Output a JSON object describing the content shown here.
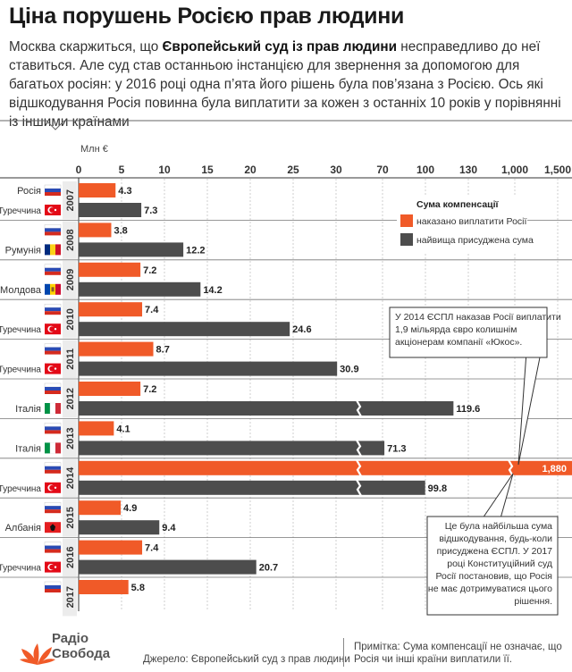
{
  "header": {
    "title": "Ціна порушень Росією прав людини",
    "intro_before": "Москва скаржиться, що ",
    "intro_bold": "Європейський суд із прав людини",
    "intro_after": " несправедливо до неї ставиться. Але суд став останньою інстанцією для звернення за допомогою для багатьох росіян: у 2016 році одна п’ята його рішень була пов’язана з Росією. Ось які відшкодування Росія повинна була виплатити за кожен з останніх 10 років у порівнянні із іншими країнами"
  },
  "chart_data": {
    "type": "bar",
    "orientation": "horizontal",
    "unit_label": "Млн €",
    "axis_ticks": [
      "0",
      "5",
      "10",
      "15",
      "20",
      "25",
      "30",
      "70",
      "100",
      "130",
      "1,000",
      "1,500"
    ],
    "axis_note": "нелінійна вісь з розривами",
    "legend": {
      "title": "Сума компенсації",
      "items": [
        {
          "name": "наказано виплатити Росії",
          "color": "#f05a28"
        },
        {
          "name": "найвища присуджена сума",
          "color": "#4d4d4d"
        }
      ]
    },
    "years": [
      {
        "year": "2007",
        "rows": [
          {
            "country": "Росія",
            "flag": "russia",
            "value": 4.3,
            "label": "4.3",
            "series": "russia"
          },
          {
            "country": "Туреччина",
            "flag": "turkey",
            "value": 7.3,
            "label": "7.3",
            "series": "max"
          }
        ]
      },
      {
        "year": "2008",
        "rows": [
          {
            "country": "",
            "flag": "russia",
            "value": 3.8,
            "label": "3.8",
            "series": "russia"
          },
          {
            "country": "Румунія",
            "flag": "romania",
            "value": 12.2,
            "label": "12.2",
            "series": "max"
          }
        ]
      },
      {
        "year": "2009",
        "rows": [
          {
            "country": "",
            "flag": "russia",
            "value": 7.2,
            "label": "7.2",
            "series": "russia"
          },
          {
            "country": "Молдова",
            "flag": "moldova",
            "value": 14.2,
            "label": "14.2",
            "series": "max"
          }
        ]
      },
      {
        "year": "2010",
        "rows": [
          {
            "country": "",
            "flag": "russia",
            "value": 7.4,
            "label": "7.4",
            "series": "russia"
          },
          {
            "country": "Туреччина",
            "flag": "turkey",
            "value": 24.6,
            "label": "24.6",
            "series": "max"
          }
        ]
      },
      {
        "year": "2011",
        "rows": [
          {
            "country": "",
            "flag": "russia",
            "value": 8.7,
            "label": "8.7",
            "series": "russia"
          },
          {
            "country": "Туреччина",
            "flag": "turkey",
            "value": 30.9,
            "label": "30.9",
            "series": "max"
          }
        ]
      },
      {
        "year": "2012",
        "rows": [
          {
            "country": "",
            "flag": "russia",
            "value": 7.2,
            "label": "7.2",
            "series": "russia"
          },
          {
            "country": "Італія",
            "flag": "italy",
            "value": 119.6,
            "label": "119.6",
            "series": "max"
          }
        ]
      },
      {
        "year": "2013",
        "rows": [
          {
            "country": "",
            "flag": "russia",
            "value": 4.1,
            "label": "4.1",
            "series": "russia"
          },
          {
            "country": "Італія",
            "flag": "italy",
            "value": 71.3,
            "label": "71.3",
            "series": "max"
          }
        ]
      },
      {
        "year": "2014",
        "rows": [
          {
            "country": "",
            "flag": "russia",
            "value": 1880,
            "label": "1,880",
            "series": "russia"
          },
          {
            "country": "Туреччина",
            "flag": "turkey",
            "value": 99.8,
            "label": "99.8",
            "series": "max"
          }
        ]
      },
      {
        "year": "2015",
        "rows": [
          {
            "country": "",
            "flag": "russia",
            "value": 4.9,
            "label": "4.9",
            "series": "russia"
          },
          {
            "country": "Албанія",
            "flag": "albania",
            "value": 9.4,
            "label": "9.4",
            "series": "max"
          }
        ]
      },
      {
        "year": "2016",
        "rows": [
          {
            "country": "",
            "flag": "russia",
            "value": 7.4,
            "label": "7.4",
            "series": "russia"
          },
          {
            "country": "Туреччина",
            "flag": "turkey",
            "value": 20.7,
            "label": "20.7",
            "series": "max"
          }
        ]
      },
      {
        "year": "2017",
        "rows": [
          {
            "country": "",
            "flag": "russia",
            "value": 5.8,
            "label": "5.8",
            "series": "russia"
          }
        ]
      }
    ],
    "annotations": [
      "У 2014 ЄСПЛ наказав Росії виплатити 1,9 мільярда євро колишнім акціонерам компанії «Юкос».",
      "Це була найбільша сума відшкодування, будь-коли присуджена ЄСПЛ. У 2017 році Конституційний суд Росії постановив, що Росія не має дотримуватися цього рішення."
    ]
  },
  "footer": {
    "logo_line1": "Радіо",
    "logo_line2": "Свобода",
    "source": "Джерело: Європейський суд з прав людини",
    "note": "Примітка: Сума компенсації не означає, що Росія чи інші країни виплатили її."
  }
}
